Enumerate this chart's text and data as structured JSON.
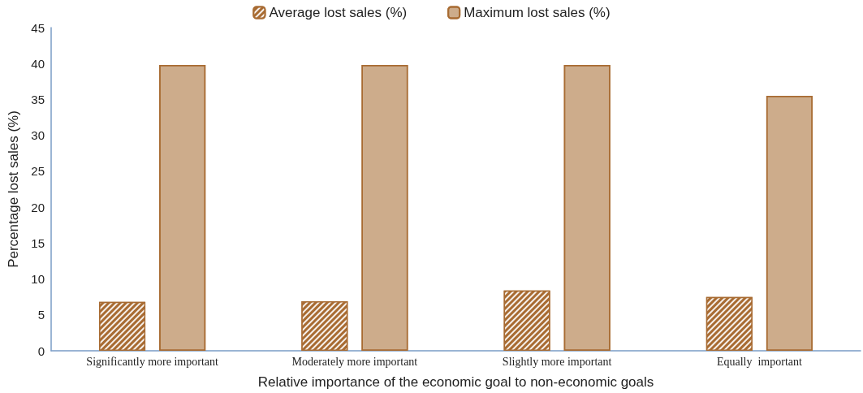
{
  "chart_data": {
    "type": "bar",
    "xlabel": "Relative importance of the economic goal to non-economic goals",
    "ylabel": "Percentage lost sales (%)",
    "categories": [
      "Significantly more important",
      "Moderately more important",
      "Slightly more important",
      "Equally  important"
    ],
    "series": [
      {
        "name": "Average lost sales (%)",
        "color": "#a86b32",
        "values": [
          6.8,
          6.9,
          8.4,
          7.5
        ]
      },
      {
        "name": "Maximum lost sales (%)",
        "color": "#cdac8b",
        "values": [
          39.8,
          39.8,
          39.8,
          35.5
        ]
      }
    ],
    "ylim": [
      0,
      45
    ],
    "yticks": [
      0,
      5,
      10,
      15,
      20,
      25,
      30,
      35,
      40,
      45
    ],
    "grid": false,
    "legend": "top"
  }
}
